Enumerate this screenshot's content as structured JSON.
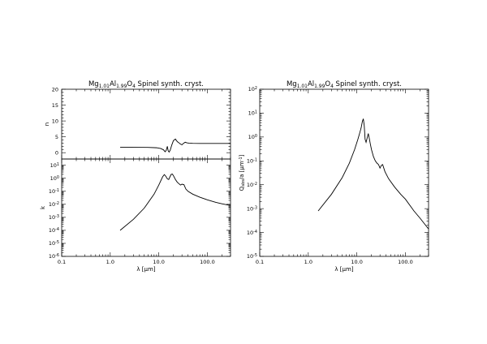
{
  "chart_data": [
    {
      "type": "line",
      "panel": "n",
      "title": "Mg1.01Al1.99O4 Spinel synth. cryst.",
      "title_parts": [
        [
          "Mg",
          ""
        ],
        [
          "1.01",
          "sub"
        ],
        [
          "Al",
          ""
        ],
        [
          "1.99",
          "sub"
        ],
        [
          "O",
          ""
        ],
        [
          "4",
          "sub"
        ],
        [
          " Spinel synth. cryst.",
          ""
        ]
      ],
      "xlabel": "",
      "ylabel": "n",
      "xscale": "log",
      "yscale": "linear",
      "xlim": [
        0.1,
        300
      ],
      "ylim": [
        -2,
        20
      ],
      "yticks": [
        0,
        5,
        10,
        15,
        20
      ],
      "ytick_labels": [
        "0",
        "5",
        "10",
        "15",
        "20"
      ],
      "series": [
        {
          "x": [
            1.6,
            3,
            6,
            9,
            11,
            12.5,
            13.5,
            14.2,
            15,
            15.6,
            16.3,
            17.2,
            18.5,
            20,
            22,
            24,
            26,
            28,
            30,
            32,
            35,
            38,
            42,
            50,
            70,
            100,
            150,
            300
          ],
          "y": [
            1.72,
            1.7,
            1.66,
            1.55,
            1.3,
            0.9,
            0.3,
            0.7,
            2.0,
            0.6,
            0.2,
            0.8,
            2.4,
            3.8,
            4.3,
            3.5,
            3.1,
            2.7,
            2.5,
            2.9,
            3.3,
            3.1,
            3.0,
            2.95,
            2.92,
            2.9,
            2.9,
            2.9
          ]
        }
      ]
    },
    {
      "type": "line",
      "panel": "k",
      "xlabel_parts": [
        [
          "λ [",
          ""
        ],
        [
          "μ",
          "greek"
        ],
        [
          "m]",
          ""
        ]
      ],
      "ylabel": "k",
      "xscale": "log",
      "yscale": "log",
      "xlim": [
        0.1,
        300
      ],
      "ylim": [
        1e-06,
        30
      ],
      "xticks": [
        0.1,
        1,
        10,
        100
      ],
      "xtick_labels": [
        "0.1",
        "1.0",
        "10.0",
        "100.0"
      ],
      "yticks": [
        1e-06,
        1e-05,
        0.0001,
        0.001,
        0.01,
        0.1,
        1,
        10
      ],
      "ytick_exps": [
        "-6",
        "-5",
        "-4",
        "-3",
        "-2",
        "-1",
        "0",
        "1"
      ],
      "series": [
        {
          "x": [
            1.6,
            3,
            5,
            8,
            10,
            12,
            13,
            14,
            15,
            16,
            17,
            18,
            19,
            20,
            22,
            24,
            26,
            28,
            30,
            33,
            36,
            40,
            50,
            70,
            100,
            150,
            200,
            300
          ],
          "y": [
            0.0001,
            0.0007,
            0.005,
            0.06,
            0.3,
            1.3,
            1.9,
            1.4,
            0.9,
            0.8,
            1.3,
            2.0,
            2.1,
            1.6,
            0.8,
            0.5,
            0.38,
            0.3,
            0.35,
            0.32,
            0.15,
            0.1,
            0.06,
            0.035,
            0.022,
            0.014,
            0.011,
            0.008
          ]
        }
      ]
    },
    {
      "type": "line",
      "panel": "qabs",
      "title": "Mg1.01Al1.99O4 Spinel synth. cryst.",
      "title_parts": [
        [
          "Mg",
          ""
        ],
        [
          "1.01",
          "sub"
        ],
        [
          "Al",
          ""
        ],
        [
          "1.99",
          "sub"
        ],
        [
          "O",
          ""
        ],
        [
          "4",
          "sub"
        ],
        [
          " Spinel synth. cryst.",
          ""
        ]
      ],
      "xlabel_parts": [
        [
          "λ [",
          ""
        ],
        [
          "μ",
          "greek"
        ],
        [
          "m]",
          ""
        ]
      ],
      "ylabel_parts": [
        [
          "Q",
          ""
        ],
        [
          "abs",
          "sub"
        ],
        [
          "/a [",
          ""
        ],
        [
          "μ",
          "greek"
        ],
        [
          "m",
          ""
        ],
        [
          "-1",
          "sup"
        ],
        [
          "]",
          ""
        ]
      ],
      "xscale": "log",
      "yscale": "log",
      "xlim": [
        0.1,
        300
      ],
      "ylim": [
        1e-05,
        100
      ],
      "xticks": [
        0.1,
        1,
        10,
        100
      ],
      "xtick_labels": [
        "0.1",
        "1.0",
        "10.0",
        "100.0"
      ],
      "yticks": [
        1e-05,
        0.0001,
        0.001,
        0.01,
        0.1,
        1,
        10,
        100
      ],
      "ytick_exps": [
        "-5",
        "-4",
        "-3",
        "-2",
        "-1",
        "0",
        "1",
        "2"
      ],
      "series": [
        {
          "x": [
            1.6,
            3,
            5,
            7,
            9,
            10.5,
            11.5,
            12.3,
            13,
            13.6,
            14.2,
            14.8,
            15.5,
            16.3,
            17.2,
            18,
            19,
            20,
            22,
            24,
            26,
            28,
            30,
            32,
            34,
            38,
            45,
            60,
            80,
            100,
            150,
            200,
            300
          ],
          "y": [
            0.0008,
            0.004,
            0.02,
            0.08,
            0.3,
            0.8,
            1.5,
            2.5,
            4.5,
            5.8,
            3.0,
            0.8,
            0.6,
            0.9,
            1.4,
            0.9,
            0.5,
            0.3,
            0.15,
            0.1,
            0.08,
            0.07,
            0.05,
            0.065,
            0.07,
            0.035,
            0.018,
            0.008,
            0.004,
            0.0025,
            0.0008,
            0.0004,
            0.00014
          ]
        }
      ]
    }
  ]
}
